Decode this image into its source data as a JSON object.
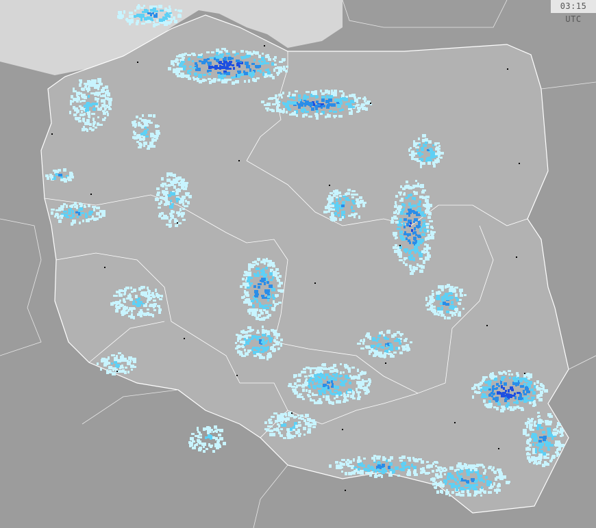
{
  "timestamp": "03:15 UTC",
  "colors": {
    "sea": "#d6d6d6",
    "poland": "#b2b2b2",
    "neighbors": "#9c9c9c",
    "border": "#ffffff",
    "city": "#000000",
    "radar_light": "#c8f4ff",
    "radar_cyan": "#5ed0f5",
    "radar_blue": "#2a8de8",
    "radar_dark": "#1e4fe0"
  }
}
